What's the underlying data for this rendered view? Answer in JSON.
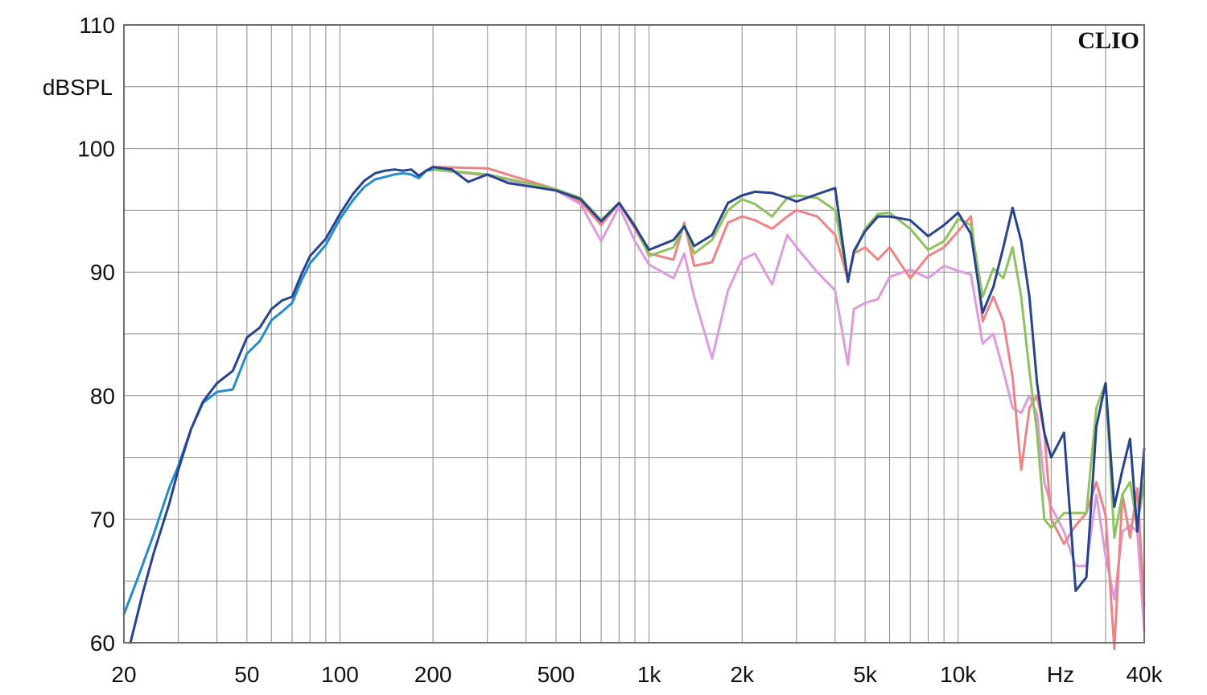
{
  "chart_data": {
    "type": "line",
    "brand_label": "CLIO",
    "y_unit_label": "dBSPL",
    "x_unit_label": "Hz",
    "x_scale": "log",
    "xlim": [
      20,
      40000
    ],
    "ylim": [
      60,
      110
    ],
    "grid": true,
    "y_ticks": [
      {
        "value": 60,
        "label": "60"
      },
      {
        "value": 70,
        "label": "70"
      },
      {
        "value": 80,
        "label": "80"
      },
      {
        "value": 90,
        "label": "90"
      },
      {
        "value": 100,
        "label": "100"
      },
      {
        "value": 110,
        "label": "110"
      }
    ],
    "x_ticks": [
      {
        "value": 20,
        "label": "20"
      },
      {
        "value": 50,
        "label": "50"
      },
      {
        "value": 100,
        "label": "100"
      },
      {
        "value": 200,
        "label": "200"
      },
      {
        "value": 500,
        "label": "500"
      },
      {
        "value": 1000,
        "label": "1k"
      },
      {
        "value": 2000,
        "label": "2k"
      },
      {
        "value": 5000,
        "label": "5k"
      },
      {
        "value": 10000,
        "label": "10k"
      },
      {
        "value": 40000,
        "label": "40k"
      }
    ],
    "series": [
      {
        "color": "#de9adf",
        "x": [
          200,
          300,
          500,
          600,
          700,
          800,
          900,
          1000,
          1200,
          1300,
          1400,
          1600,
          1800,
          2000,
          2200,
          2500,
          2800,
          3000,
          3500,
          4000,
          4400,
          4600,
          5000,
          5500,
          6000,
          7000,
          8000,
          9000,
          10000,
          11000,
          12000,
          13000,
          14000,
          15000,
          16000,
          17000,
          18000,
          19000,
          20000,
          22000,
          24000,
          26000,
          28000,
          30000,
          32000,
          34000,
          36000,
          38000,
          40000
        ],
        "y": [
          98.3,
          97.8,
          96.6,
          95.5,
          92.5,
          95.3,
          92.5,
          90.6,
          89.5,
          91.5,
          88,
          83,
          88.5,
          91,
          91.5,
          89,
          93,
          92,
          90,
          88.5,
          82.5,
          87,
          87.5,
          87.8,
          89.6,
          90.2,
          89.5,
          90.5,
          90.1,
          89.8,
          84.2,
          85,
          82,
          79,
          78.6,
          80,
          78.5,
          73,
          71,
          69,
          66.2,
          66.2,
          72,
          67,
          63.5,
          69,
          69.5,
          69,
          61
        ]
      },
      {
        "color": "#ed8384",
        "x": [
          200,
          300,
          500,
          600,
          700,
          800,
          900,
          1000,
          1200,
          1300,
          1400,
          1600,
          1800,
          2000,
          2200,
          2500,
          2800,
          3000,
          3500,
          4000,
          4400,
          4600,
          5000,
          5500,
          6000,
          7000,
          8000,
          9000,
          10000,
          11000,
          12000,
          13000,
          14000,
          15000,
          16000,
          17000,
          18000,
          19000,
          20000,
          22000,
          24000,
          26000,
          28000,
          30000,
          32000,
          34000,
          36000,
          38000,
          40000
        ],
        "y": [
          98.5,
          98.4,
          96.7,
          95.7,
          93.8,
          95.6,
          93.5,
          91.5,
          91,
          94,
          90.5,
          90.8,
          94,
          94.5,
          94.2,
          93.5,
          94.5,
          95,
          94.5,
          93,
          89.4,
          91.5,
          92,
          91,
          92,
          89.5,
          91.3,
          92,
          93.3,
          94.5,
          86,
          88,
          86,
          81.5,
          74,
          79,
          80,
          77,
          70,
          68,
          69.5,
          70.5,
          73,
          70.3,
          59.5,
          72,
          68.5,
          72.5,
          63
        ]
      },
      {
        "color": "#8ec25e",
        "x": [
          200,
          300,
          500,
          600,
          700,
          800,
          900,
          1000,
          1200,
          1300,
          1400,
          1600,
          1800,
          2000,
          2200,
          2500,
          2800,
          3000,
          3500,
          4000,
          4400,
          4600,
          5000,
          5500,
          6000,
          7000,
          8000,
          9000,
          10000,
          11000,
          12000,
          13000,
          14000,
          15000,
          16000,
          17000,
          18000,
          19000,
          20000,
          22000,
          24000,
          26000,
          28000,
          30000,
          32000,
          34000,
          36000,
          38000,
          40000
        ],
        "y": [
          98.3,
          97.9,
          96.7,
          96,
          94.2,
          95.6,
          93.8,
          91.3,
          92,
          93.8,
          91.5,
          92.6,
          95,
          95.9,
          95.5,
          94.5,
          96,
          96.2,
          96,
          95,
          89.4,
          91.5,
          93.5,
          94.7,
          94.8,
          93.5,
          91.8,
          92.5,
          94.3,
          93.8,
          88,
          90.3,
          89.5,
          92,
          88,
          82,
          77,
          70,
          69.3,
          70.5,
          70.5,
          70.5,
          79,
          81,
          68.5,
          72,
          73,
          69.5,
          73
        ]
      },
      {
        "color": "#258bcf",
        "x": [
          20,
          22,
          25,
          28,
          30,
          33,
          36,
          40,
          45,
          50,
          55,
          60,
          65,
          70,
          75,
          80,
          90,
          100,
          110,
          120,
          130,
          140,
          150,
          160,
          170,
          180,
          190,
          200
        ],
        "y": [
          62.3,
          65,
          68.8,
          72.5,
          74.3,
          77.3,
          79.4,
          80.3,
          80.5,
          83.4,
          84.4,
          86.1,
          86.8,
          87.5,
          89.3,
          90.7,
          92.2,
          94.3,
          95.8,
          96.9,
          97.5,
          97.7,
          97.9,
          98,
          97.9,
          97.6,
          98.2,
          98.3
        ]
      },
      {
        "color": "#27438f",
        "x": [
          21,
          23,
          25,
          28,
          30,
          33,
          36,
          40,
          45,
          50,
          55,
          60,
          65,
          70,
          75,
          80,
          90,
          100,
          110,
          120,
          130,
          140,
          150,
          160,
          170,
          180,
          190,
          200,
          230,
          260,
          300,
          350,
          500,
          600,
          700,
          800,
          900,
          1000,
          1200,
          1300,
          1400,
          1600,
          1800,
          2000,
          2200,
          2500,
          2800,
          3000,
          3500,
          4000,
          4400,
          4600,
          5000,
          5500,
          6000,
          7000,
          8000,
          9000,
          10000,
          11000,
          12000,
          13000,
          14000,
          15000,
          16000,
          17000,
          18000,
          19000,
          20000,
          22000,
          24000,
          26000,
          28000,
          30000,
          32000,
          34000,
          36000,
          38000,
          40000
        ],
        "y": [
          60,
          64,
          67.3,
          71.2,
          74,
          77.3,
          79.5,
          81,
          82,
          84.7,
          85.5,
          87,
          87.7,
          88,
          89.8,
          91.3,
          92.7,
          94.7,
          96.3,
          97.4,
          98,
          98.2,
          98.3,
          98.2,
          98.3,
          97.8,
          98.2,
          98.5,
          98.3,
          97.3,
          97.9,
          97.2,
          96.6,
          95.9,
          94.1,
          95.6,
          93.7,
          91.8,
          92.6,
          93.7,
          92.1,
          93,
          95.6,
          96.2,
          96.5,
          96.4,
          96,
          95.7,
          96.3,
          96.8,
          89.2,
          91.7,
          93.3,
          94.5,
          94.5,
          94.2,
          92.9,
          93.8,
          94.8,
          93.1,
          86.7,
          88.8,
          92,
          95.2,
          92.5,
          88,
          81,
          77,
          75,
          77,
          64.2,
          65.3,
          77.5,
          81,
          71,
          74,
          76.5,
          69,
          75.7
        ]
      }
    ]
  }
}
